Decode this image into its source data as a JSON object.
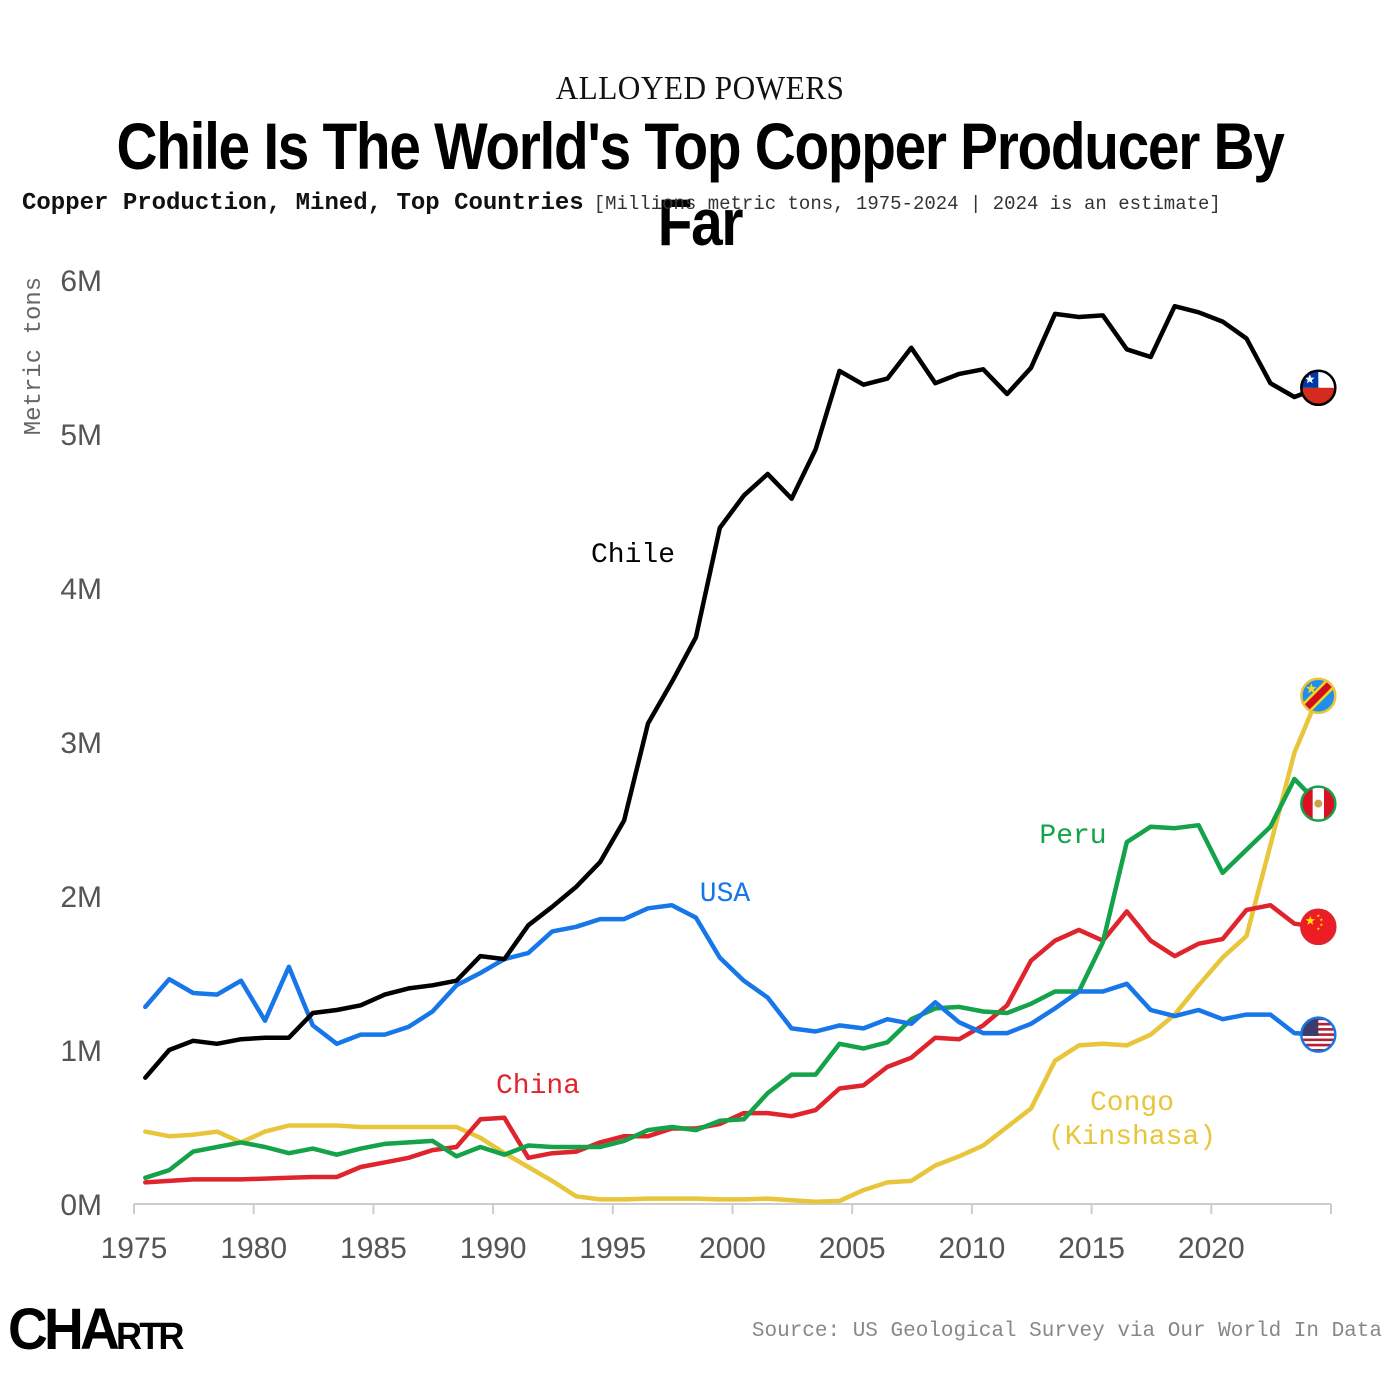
{
  "header": {
    "kicker": "ALLOYED POWERS",
    "title": "Chile Is The World's Top Copper Producer By Far",
    "subtitle_bold": "Copper Production, Mined, Top Countries",
    "subtitle_light": "[Millions metric tons, 1975-2024 | 2024 is an estimate]"
  },
  "footer": {
    "logo_main": "CHA",
    "logo_tail": "RTR",
    "source": "Source: US Geological Survey via Our World In Data"
  },
  "chart_data": {
    "type": "line",
    "title": "Chile Is The World's Top Copper Producer By Far",
    "subtitle": "Copper Production, Mined, Top Countries [Millions metric tons, 1975-2024 | 2024 is an estimate]",
    "xlabel": "",
    "ylabel": "Metric tons",
    "xlim": [
      1975,
      2025
    ],
    "ylim": [
      0,
      6
    ],
    "x_ticks": [
      1975,
      1980,
      1985,
      1990,
      1995,
      2000,
      2005,
      2010,
      2015,
      2020
    ],
    "x_tick_labels": [
      "1975",
      "1980",
      "1985",
      "1990",
      "1995",
      "2000",
      "2005",
      "2010",
      "2015",
      "2020"
    ],
    "y_ticks": [
      0,
      1,
      2,
      3,
      4,
      5,
      6
    ],
    "y_tick_labels": [
      "0M",
      "1M",
      "2M",
      "3M",
      "4M",
      "5M",
      "6M"
    ],
    "grid": false,
    "legend": "direct-labels",
    "x": [
      1975,
      1976,
      1977,
      1978,
      1979,
      1980,
      1981,
      1982,
      1983,
      1984,
      1985,
      1986,
      1987,
      1988,
      1989,
      1990,
      1991,
      1992,
      1993,
      1994,
      1995,
      1996,
      1997,
      1998,
      1999,
      2000,
      2001,
      2002,
      2003,
      2004,
      2005,
      2006,
      2007,
      2008,
      2009,
      2010,
      2011,
      2012,
      2013,
      2014,
      2015,
      2016,
      2017,
      2018,
      2019,
      2020,
      2021,
      2022,
      2023,
      2024
    ],
    "series": [
      {
        "name": "Chile",
        "label": "Chile",
        "color": "#000000",
        "flag": "chile-flag",
        "values": [
          0.82,
          1.0,
          1.06,
          1.04,
          1.07,
          1.08,
          1.08,
          1.24,
          1.26,
          1.29,
          1.36,
          1.4,
          1.42,
          1.45,
          1.61,
          1.59,
          1.81,
          1.93,
          2.06,
          2.22,
          2.49,
          3.12,
          3.39,
          3.68,
          4.39,
          4.6,
          4.74,
          4.58,
          4.9,
          5.41,
          5.32,
          5.36,
          5.56,
          5.33,
          5.39,
          5.42,
          5.26,
          5.43,
          5.78,
          5.76,
          5.77,
          5.55,
          5.5,
          5.83,
          5.79,
          5.73,
          5.62,
          5.33,
          5.24,
          5.3
        ]
      },
      {
        "name": "USA",
        "label": "USA",
        "color": "#1776e8",
        "flag": "usa-flag",
        "values": [
          1.28,
          1.46,
          1.37,
          1.36,
          1.45,
          1.19,
          1.54,
          1.16,
          1.04,
          1.1,
          1.1,
          1.15,
          1.25,
          1.42,
          1.5,
          1.59,
          1.63,
          1.77,
          1.8,
          1.85,
          1.85,
          1.92,
          1.94,
          1.86,
          1.6,
          1.45,
          1.34,
          1.14,
          1.12,
          1.16,
          1.14,
          1.2,
          1.17,
          1.31,
          1.18,
          1.11,
          1.11,
          1.17,
          1.27,
          1.38,
          1.38,
          1.43,
          1.26,
          1.22,
          1.26,
          1.2,
          1.23,
          1.23,
          1.11,
          1.1
        ]
      },
      {
        "name": "Peru",
        "label": "Peru",
        "color": "#14a24a",
        "flag": "peru-flag",
        "values": [
          0.17,
          0.22,
          0.34,
          0.37,
          0.4,
          0.37,
          0.33,
          0.36,
          0.32,
          0.36,
          0.39,
          0.4,
          0.41,
          0.31,
          0.37,
          0.32,
          0.38,
          0.37,
          0.37,
          0.37,
          0.41,
          0.48,
          0.5,
          0.48,
          0.54,
          0.55,
          0.72,
          0.84,
          0.84,
          1.04,
          1.01,
          1.05,
          1.2,
          1.27,
          1.28,
          1.25,
          1.24,
          1.3,
          1.38,
          1.38,
          1.7,
          2.35,
          2.45,
          2.44,
          2.46,
          2.15,
          2.3,
          2.45,
          2.76,
          2.6
        ]
      },
      {
        "name": "China",
        "label": "China",
        "color": "#e0242e",
        "flag": "china-flag",
        "values": [
          0.14,
          0.15,
          0.16,
          0.16,
          0.16,
          0.165,
          0.17,
          0.175,
          0.175,
          0.24,
          0.27,
          0.3,
          0.35,
          0.37,
          0.55,
          0.56,
          0.3,
          0.33,
          0.34,
          0.4,
          0.44,
          0.44,
          0.49,
          0.49,
          0.52,
          0.59,
          0.59,
          0.57,
          0.61,
          0.75,
          0.77,
          0.89,
          0.95,
          1.08,
          1.07,
          1.16,
          1.29,
          1.58,
          1.71,
          1.78,
          1.71,
          1.9,
          1.71,
          1.61,
          1.69,
          1.72,
          1.91,
          1.94,
          1.82,
          1.8
        ]
      },
      {
        "name": "Congo (Kinshasa)",
        "label": "Congo\n(Kinshasa)",
        "color": "#e8c53a",
        "flag": "drc-flag",
        "values": [
          0.47,
          0.44,
          0.45,
          0.47,
          0.4,
          0.47,
          0.51,
          0.51,
          0.51,
          0.5,
          0.5,
          0.5,
          0.5,
          0.5,
          0.43,
          0.33,
          0.24,
          0.15,
          0.05,
          0.03,
          0.03,
          0.035,
          0.035,
          0.035,
          0.03,
          0.03,
          0.035,
          0.025,
          0.015,
          0.02,
          0.09,
          0.14,
          0.15,
          0.25,
          0.31,
          0.38,
          0.5,
          0.62,
          0.93,
          1.03,
          1.04,
          1.03,
          1.1,
          1.23,
          1.42,
          1.6,
          1.74,
          2.33,
          2.93,
          3.3
        ]
      }
    ]
  }
}
